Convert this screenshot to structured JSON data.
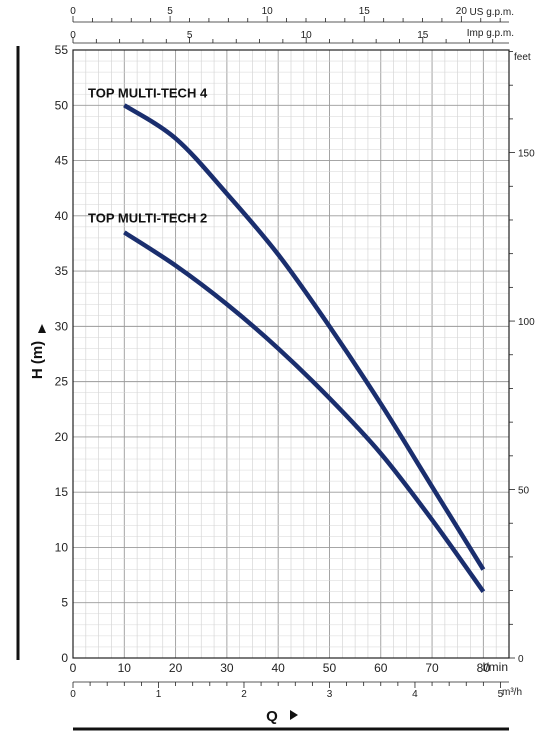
{
  "chart_data": {
    "type": "line",
    "x_unit_label": "l/min",
    "y_unit_label": "H  (m)",
    "xlabel": "Q",
    "right_unit_label": "feet",
    "top1_unit_label": "US g.p.m.",
    "top2_unit_label": "Imp g.p.m.",
    "bottom2_unit_label": "m³/h",
    "xlim": [
      0,
      85
    ],
    "ylim": [
      0,
      55
    ],
    "x_ticks": [
      0,
      10,
      20,
      30,
      40,
      50,
      60,
      70,
      80
    ],
    "y_ticks": [
      0,
      5,
      10,
      15,
      20,
      25,
      30,
      35,
      40,
      45,
      50,
      55
    ],
    "feet_ticks": [
      0,
      50,
      100,
      150
    ],
    "us_gpm_ticks": [
      0,
      5,
      10,
      15,
      20
    ],
    "imp_gpm_ticks": [
      0,
      5,
      10,
      15
    ],
    "m3h_ticks": [
      0,
      1,
      2,
      3,
      4,
      5
    ],
    "grid": true,
    "series": [
      {
        "name": "TOP MULTI-TECH 4",
        "color": "#1a2e6e",
        "x": [
          10,
          20,
          30,
          40,
          50,
          60,
          70,
          80
        ],
        "y": [
          50.0,
          47.0,
          42.0,
          36.5,
          30.0,
          23.0,
          15.5,
          8.0
        ]
      },
      {
        "name": "TOP MULTI-TECH 2",
        "color": "#1a2e6e",
        "x": [
          10,
          20,
          30,
          40,
          50,
          60,
          70,
          80
        ],
        "y": [
          38.5,
          35.5,
          32.0,
          28.0,
          23.5,
          18.5,
          12.5,
          6.0
        ]
      }
    ]
  }
}
